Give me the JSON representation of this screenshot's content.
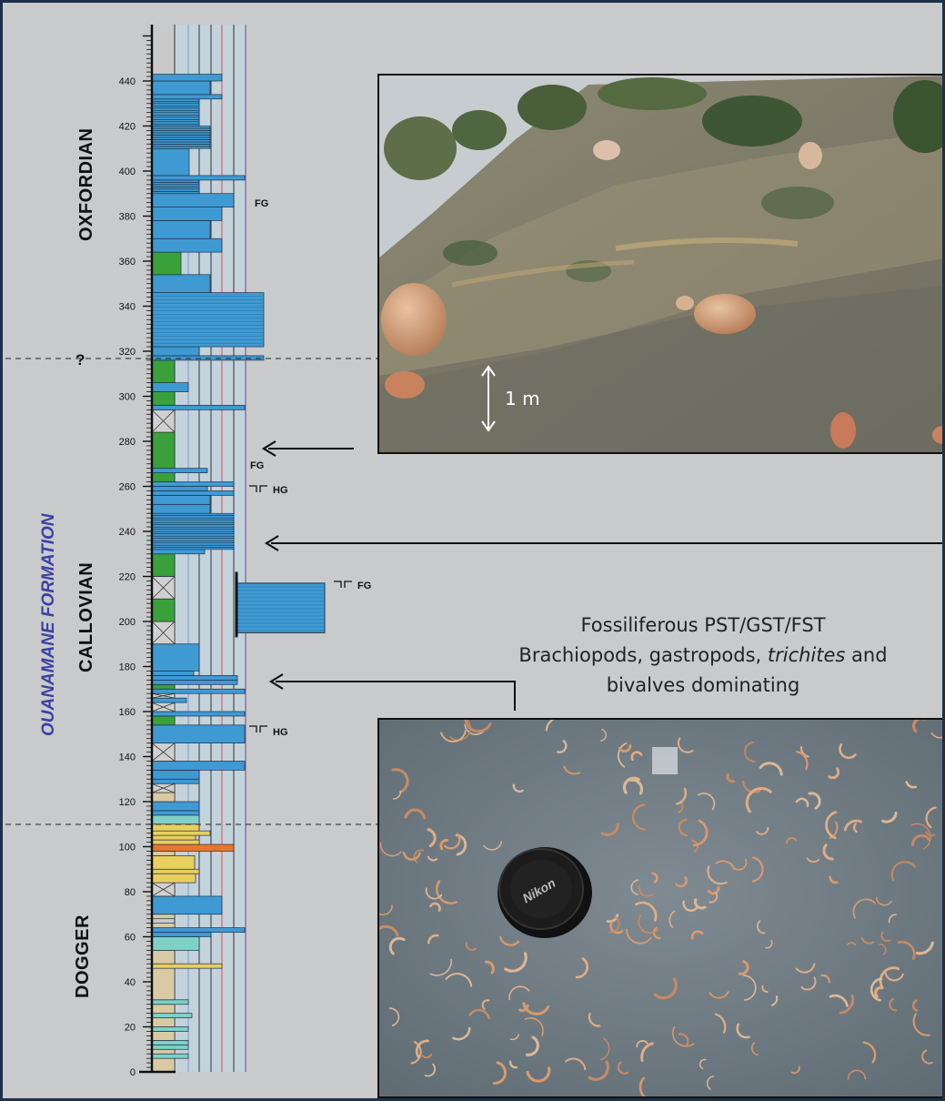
{
  "strat_column": {
    "depth_ticks": [
      "0",
      "20",
      "40",
      "60",
      "80",
      "100",
      "120",
      "140",
      "160",
      "180",
      "200",
      "220",
      "240",
      "260",
      "280",
      "300",
      "320",
      "340",
      "360",
      "380",
      "400",
      "420",
      "440"
    ],
    "stages": {
      "oxfordian": "OXFORDIAN",
      "callovian": "CALLOVIAN",
      "dogger": "DOGGER"
    },
    "formation": "OUANAMANE FORMATION",
    "uncertain_boundary": "?",
    "markers": {
      "fg_top": "FG",
      "fg_arrow": "FG",
      "hg_260": "HG",
      "fg_215": "FG",
      "hg_150": "HG"
    },
    "colors": {
      "limestone_blue": "#3f9ad3",
      "marl_green": "#3aa13a",
      "siltstone_teal": "#7fd1c6",
      "sandstone_yellow": "#e8cf5e",
      "orange_bed": "#e8772e",
      "beige_sand": "#d9caa3",
      "formation_label": "#3b3fa6"
    }
  },
  "photos": {
    "outcrop": {
      "scale_label": "1 m",
      "description_icon": "outcrop-photo"
    },
    "fossil": {
      "lens_cap_text": "Nikon",
      "description_icon": "fossil-bed-photo"
    }
  },
  "caption": {
    "line1": "Fossiliferous PST/GST/FST",
    "line2_before": "Brachiopods, gastropods, ",
    "line2_italic": "trichites",
    "line2_after": " and",
    "line3": "bivalves dominating"
  }
}
